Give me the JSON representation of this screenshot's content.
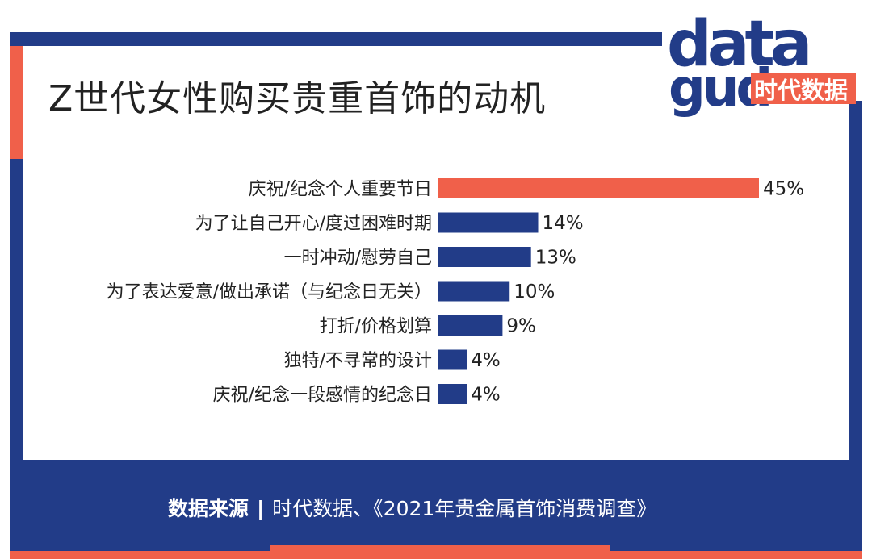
{
  "title": "Z世代女性购买贵重首饰的动机",
  "logo": {
    "brand_line1": "data",
    "brand_line2": "gud",
    "brand_cn": "时代数据"
  },
  "source": {
    "label": "数据来源",
    "separator": "|",
    "text": "时代数据、《2021年贵金属首饰消费调查》"
  },
  "colors": {
    "navy": "#223c88",
    "coral": "#f0604a",
    "text": "#222222"
  },
  "chart_data": {
    "type": "bar",
    "orientation": "horizontal",
    "categories": [
      "庆祝/纪念个人重要节日",
      "为了让自己开心/度过困难时期",
      "一时冲动/慰劳自己",
      "为了表达爱意/做出承诺（与纪念日无关）",
      "打折/价格划算",
      "独特/不寻常的设计",
      "庆祝/纪念一段感情的纪念日"
    ],
    "values": [
      45,
      14,
      13,
      10,
      9,
      4,
      4
    ],
    "value_labels": [
      "45%",
      "14%",
      "13%",
      "10%",
      "9%",
      "4%",
      "4%"
    ],
    "unit": "%",
    "highlight_index": 0,
    "grid": false,
    "legend": "none"
  }
}
